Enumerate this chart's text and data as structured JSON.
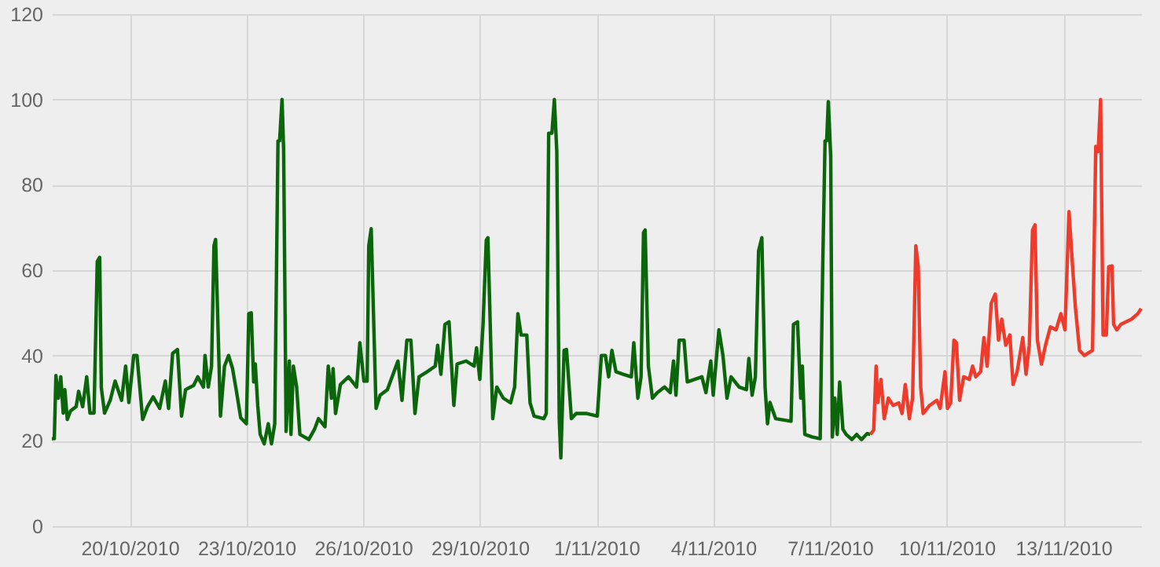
{
  "chart_data": {
    "type": "line",
    "xlim": [
      "2010-10-18T00:00",
      "2010-11-15T00:00"
    ],
    "ylim": [
      0,
      120
    ],
    "xticks": [
      {
        "value": "2010-10-20T00:00",
        "label": "20/10/2010"
      },
      {
        "value": "2010-10-23T00:00",
        "label": "23/10/2010"
      },
      {
        "value": "2010-10-26T00:00",
        "label": "26/10/2010"
      },
      {
        "value": "2010-10-29T00:00",
        "label": "29/10/2010"
      },
      {
        "value": "2010-11-01T00:00",
        "label": "1/11/2010"
      },
      {
        "value": "2010-11-04T00:00",
        "label": "4/11/2010"
      },
      {
        "value": "2010-11-07T00:00",
        "label": "7/11/2010"
      },
      {
        "value": "2010-11-10T00:00",
        "label": "10/11/2010"
      },
      {
        "value": "2010-11-13T00:00",
        "label": "13/11/2010"
      }
    ],
    "yticks": [
      0,
      20,
      40,
      60,
      80,
      100,
      120
    ],
    "grid": true,
    "marker": "none",
    "line_style": "solid",
    "series": [
      {
        "color": "#0b650b",
        "x": [
          "2010-10-18T00:00",
          "2010-10-18T01:30",
          "2010-10-18T02:30",
          "2010-10-18T04:00",
          "2010-10-18T05:30",
          "2010-10-18T07:00",
          "2010-10-18T08:00",
          "2010-10-18T09:30",
          "2010-10-18T11:30",
          "2010-10-18T15:00",
          "2010-10-18T16:30",
          "2010-10-18T19:00",
          "2010-10-18T21:30",
          "2010-10-18T23:30",
          "2010-10-19T02:00",
          "2010-10-19T04:00",
          "2010-10-19T05:30",
          "2010-10-19T06:30",
          "2010-10-19T08:30",
          "2010-10-19T12:00",
          "2010-10-19T15:00",
          "2010-10-19T19:00",
          "2010-10-19T21:30",
          "2010-10-19T23:30",
          "2010-10-20T02:30",
          "2010-10-20T04:30",
          "2010-10-20T08:00",
          "2010-10-20T11:00",
          "2010-10-20T14:30",
          "2010-10-20T18:30",
          "2010-10-20T22:00",
          "2010-10-21T00:00",
          "2010-10-21T02:30",
          "2010-10-21T05:30",
          "2010-10-21T08:00",
          "2010-10-21T10:30",
          "2010-10-21T15:30",
          "2010-10-21T18:00",
          "2010-10-21T21:30",
          "2010-10-21T22:30",
          "2010-10-22T00:30",
          "2010-10-22T02:30",
          "2010-10-22T04:00",
          "2010-10-22T05:00",
          "2010-10-22T08:00",
          "2010-10-22T10:30",
          "2010-10-22T13:00",
          "2010-10-22T15:30",
          "2010-10-22T18:00",
          "2010-10-22T20:30",
          "2010-10-23T00:00",
          "2010-10-23T01:30",
          "2010-10-23T03:00",
          "2010-10-23T04:30",
          "2010-10-23T05:30",
          "2010-10-23T07:00",
          "2010-10-23T08:30",
          "2010-10-23T11:00",
          "2010-10-23T13:30",
          "2010-10-23T15:30",
          "2010-10-23T17:30",
          "2010-10-23T19:30",
          "2010-10-23T20:30",
          "2010-10-23T22:00",
          "2010-10-23T23:00",
          "2010-10-24T00:30",
          "2010-10-24T02:30",
          "2010-10-24T03:30",
          "2010-10-24T05:00",
          "2010-10-24T07:00",
          "2010-10-24T09:00",
          "2010-10-24T14:30",
          "2010-10-24T18:00",
          "2010-10-24T20:30",
          "2010-10-25T00:30",
          "2010-10-25T02:30",
          "2010-10-25T04:30",
          "2010-10-25T05:30",
          "2010-10-25T07:00",
          "2010-10-25T10:00",
          "2010-10-25T15:00",
          "2010-10-25T20:00",
          "2010-10-25T22:00",
          "2010-10-26T00:30",
          "2010-10-26T02:30",
          "2010-10-26T03:30",
          "2010-10-26T05:00",
          "2010-10-26T08:00",
          "2010-10-26T10:30",
          "2010-10-26T15:00",
          "2010-10-26T21:30",
          "2010-10-27T00:00",
          "2010-10-27T03:00",
          "2010-10-27T05:30",
          "2010-10-27T08:00",
          "2010-10-27T10:30",
          "2010-10-27T15:30",
          "2010-10-27T20:30",
          "2010-10-27T22:00",
          "2010-10-28T00:00",
          "2010-10-28T02:30",
          "2010-10-28T05:00",
          "2010-10-28T08:00",
          "2010-10-28T10:00",
          "2010-10-28T15:30",
          "2010-10-28T20:30",
          "2010-10-28T22:00",
          "2010-10-29T00:00",
          "2010-10-29T02:00",
          "2010-10-29T04:00",
          "2010-10-29T05:00",
          "2010-10-29T08:00",
          "2010-10-29T10:30",
          "2010-10-29T14:30",
          "2010-10-29T19:00",
          "2010-10-29T21:30",
          "2010-10-29T23:30",
          "2010-10-30T01:30",
          "2010-10-30T05:00",
          "2010-10-30T07:00",
          "2010-10-30T09:30",
          "2010-10-30T15:30",
          "2010-10-30T17:00",
          "2010-10-30T18:30",
          "2010-10-30T20:30",
          "2010-10-30T22:00",
          "2010-10-30T23:30",
          "2010-10-31T01:00",
          "2010-10-31T02:00",
          "2010-10-31T04:00",
          "2010-10-31T05:30",
          "2010-10-31T08:30",
          "2010-10-31T11:30",
          "2010-10-31T18:00",
          "2010-11-01T00:30",
          "2010-11-01T03:00",
          "2010-11-01T05:30",
          "2010-11-01T07:30",
          "2010-11-01T09:30",
          "2010-11-01T12:00",
          "2010-11-01T16:30",
          "2010-11-01T21:30",
          "2010-11-01T23:00",
          "2010-11-02T01:30",
          "2010-11-02T03:30",
          "2010-11-02T05:00",
          "2010-11-02T06:00",
          "2010-11-02T08:00",
          "2010-11-02T10:30",
          "2010-11-02T13:30",
          "2010-11-02T18:00",
          "2010-11-02T21:30",
          "2010-11-02T23:30",
          "2010-11-03T01:00",
          "2010-11-03T03:00",
          "2010-11-03T06:00",
          "2010-11-03T08:00",
          "2010-11-03T12:30",
          "2010-11-03T17:00",
          "2010-11-03T19:30",
          "2010-11-03T22:30",
          "2010-11-04T00:00",
          "2010-11-04T03:30",
          "2010-11-04T06:00",
          "2010-11-04T08:30",
          "2010-11-04T11:00",
          "2010-11-04T16:00",
          "2010-11-04T20:30",
          "2010-11-04T22:00",
          "2010-11-05T00:00",
          "2010-11-05T02:00",
          "2010-11-05T04:00",
          "2010-11-05T06:00",
          "2010-11-05T08:00",
          "2010-11-05T09:30",
          "2010-11-05T11:00",
          "2010-11-05T14:30",
          "2010-11-06T00:00",
          "2010-11-06T01:30",
          "2010-11-06T04:00",
          "2010-11-06T06:00",
          "2010-11-06T07:00",
          "2010-11-06T08:30",
          "2010-11-06T13:00",
          "2010-11-06T18:00",
          "2010-11-06T19:30",
          "2010-11-06T21:00",
          "2010-11-06T22:00",
          "2010-11-06T23:00",
          "2010-11-07T00:30",
          "2010-11-07T01:30",
          "2010-11-07T03:00",
          "2010-11-07T04:30",
          "2010-11-07T06:00",
          "2010-11-07T08:00",
          "2010-11-07T10:00",
          "2010-11-07T13:30",
          "2010-11-07T16:30",
          "2010-11-07T19:30",
          "2010-11-07T23:00",
          "2010-11-08T01:00"
        ],
        "values": [
          20.5,
          20.5,
          35.3,
          30,
          35,
          26.5,
          32,
          25,
          27,
          28,
          31.6,
          28,
          35,
          26.5,
          26.5,
          62,
          63,
          32.5,
          26.5,
          29.5,
          34,
          29.5,
          37.5,
          29,
          40,
          40,
          25,
          28,
          30.3,
          27.6,
          34,
          27.6,
          40.5,
          41.4,
          25.8,
          32,
          33,
          35,
          32.6,
          40,
          32.6,
          37.5,
          65.7,
          67.2,
          25.8,
          37.5,
          40,
          36.9,
          31.3,
          25.4,
          24,
          49.8,
          50,
          33.8,
          38,
          28.3,
          21.5,
          19.3,
          24,
          19.3,
          24,
          90.3,
          90.3,
          100,
          87.8,
          22.2,
          38.7,
          21.5,
          37.5,
          32.6,
          21.5,
          20.3,
          22.7,
          25.2,
          23.3,
          37.5,
          30,
          36.9,
          26.4,
          33.2,
          35,
          32.6,
          43,
          34,
          34,
          65.7,
          69.7,
          27.6,
          30.7,
          32,
          38.7,
          29.5,
          43.6,
          43.6,
          26.4,
          35,
          36.2,
          37.5,
          42.4,
          35.6,
          47.3,
          47.9,
          28.3,
          38,
          38.7,
          37.5,
          41.8,
          34.4,
          47.3,
          67,
          67.6,
          25.2,
          32.6,
          30,
          28.9,
          32.6,
          49.8,
          44.8,
          44.8,
          28.9,
          25.8,
          25.2,
          26.4,
          92.1,
          92.1,
          100,
          87.8,
          25.2,
          16,
          41.2,
          41.4,
          25.2,
          26.4,
          26.4,
          25.8,
          40,
          40,
          35,
          41.2,
          36.2,
          35.6,
          35,
          43,
          30,
          35,
          68.8,
          69.4,
          37.5,
          30,
          31.3,
          32.6,
          31.3,
          38.7,
          30.7,
          43.6,
          43.6,
          33.8,
          34.4,
          35,
          31.3,
          38.7,
          30.7,
          46,
          40,
          30,
          35,
          32.6,
          32,
          39.3,
          30.7,
          35,
          64.5,
          67.6,
          32.6,
          24,
          29,
          25.2,
          24.6,
          47.3,
          47.9,
          30,
          37.5,
          21.5,
          20.9,
          20.5,
          59.6,
          90.3,
          90.3,
          99.5,
          86.6,
          20.9,
          30,
          21.5,
          33.8,
          22.7,
          21.5,
          20.3,
          21.5,
          20.3,
          21.7,
          21.5
        ]
      },
      {
        "color": "#ee3b2c",
        "x": [
          "2010-11-08T01:00",
          "2010-11-08T03:00",
          "2010-11-08T04:30",
          "2010-11-08T05:30",
          "2010-11-08T07:30",
          "2010-11-08T09:30",
          "2010-11-08T12:00",
          "2010-11-08T15:00",
          "2010-11-08T18:30",
          "2010-11-08T20:30",
          "2010-11-08T22:30",
          "2010-11-09T01:00",
          "2010-11-09T03:00",
          "2010-11-09T05:00",
          "2010-11-09T06:30",
          "2010-11-09T08:00",
          "2010-11-09T09:30",
          "2010-11-09T13:30",
          "2010-11-09T18:00",
          "2010-11-09T20:00",
          "2010-11-09T23:00",
          "2010-11-10T00:30",
          "2010-11-10T02:30",
          "2010-11-10T04:30",
          "2010-11-10T06:00",
          "2010-11-10T08:00",
          "2010-11-10T10:30",
          "2010-11-10T14:00",
          "2010-11-10T16:00",
          "2010-11-10T18:00",
          "2010-11-10T21:00",
          "2010-11-10T23:00",
          "2010-11-11T01:00",
          "2010-11-11T03:30",
          "2010-11-11T06:00",
          "2010-11-11T08:00",
          "2010-11-11T10:00",
          "2010-11-11T12:30",
          "2010-11-11T15:00",
          "2010-11-11T17:00",
          "2010-11-11T19:30",
          "2010-11-11T23:00",
          "2010-11-12T01:00",
          "2010-11-12T03:00",
          "2010-11-12T05:00",
          "2010-11-12T06:30",
          "2010-11-12T08:00",
          "2010-11-12T10:30",
          "2010-11-12T13:00",
          "2010-11-12T16:00",
          "2010-11-12T19:30",
          "2010-11-12T22:30",
          "2010-11-13T01:00",
          "2010-11-13T03:30",
          "2010-11-13T05:30",
          "2010-11-13T07:30",
          "2010-11-13T10:00",
          "2010-11-13T13:00",
          "2010-11-13T18:00",
          "2010-11-13T20:00",
          "2010-11-13T21:30",
          "2010-11-13T23:00",
          "2010-11-14T00:30",
          "2010-11-14T02:30",
          "2010-11-14T04:00",
          "2010-11-14T06:00",
          "2010-11-14T07:00",
          "2010-11-14T09:00",
          "2010-11-14T11:30",
          "2010-11-14T18:00",
          "2010-11-14T22:00",
          "2010-11-15T00:00"
        ],
        "values": [
          21.5,
          22.5,
          37.5,
          29,
          34.4,
          25.2,
          30,
          28.3,
          28.9,
          26.4,
          33.2,
          25.2,
          30,
          65.7,
          60.8,
          32.6,
          26.4,
          28.3,
          29.5,
          27.6,
          36.2,
          27.6,
          28.9,
          43.6,
          43,
          29.5,
          35,
          34.4,
          37.5,
          35,
          36.2,
          44.2,
          37.5,
          52.2,
          54.4,
          43.6,
          48.5,
          42.4,
          44.8,
          33.2,
          36.2,
          44.2,
          35.6,
          42.4,
          69.4,
          70.6,
          43.6,
          38,
          42.4,
          46.7,
          46,
          49.8,
          46,
          73.7,
          62,
          51,
          41.2,
          40,
          41.2,
          89,
          87.8,
          100,
          44.8,
          44.8,
          60.8,
          61,
          47.3,
          46,
          47.3,
          48.5,
          49.8,
          51
        ]
      }
    ]
  }
}
